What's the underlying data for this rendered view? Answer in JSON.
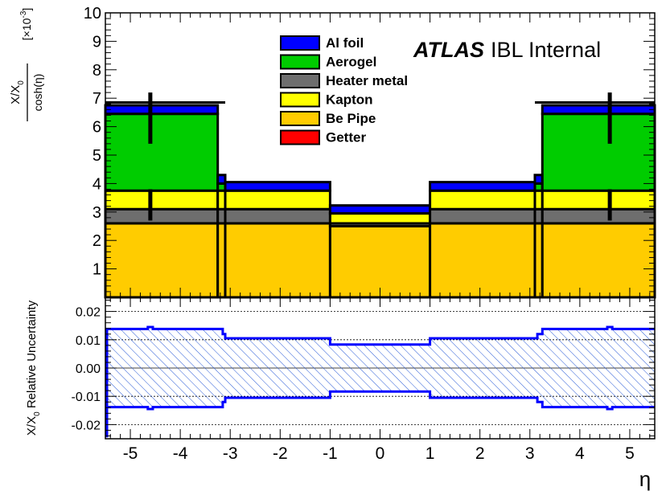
{
  "figure": {
    "watermark_bold": "ATLAS",
    "watermark_rest": "IBL Internal",
    "xlabel": "η"
  },
  "chart_data": [
    {
      "type": "bar",
      "subtype": "stacked-step-histogram",
      "ylabel_numerator": "X/X",
      "ylabel_subscript": "0",
      "ylabel_denominator": "cosh(η)",
      "ylabel_scale": "[×10",
      "ylabel_scale_exp": "-3",
      "ylabel_scale_close": "]",
      "xlim": [
        -5.5,
        5.5
      ],
      "ylim": [
        0,
        10
      ],
      "yticks": [
        "1",
        "2",
        "3",
        "4",
        "5",
        "6",
        "7",
        "8",
        "9",
        "10"
      ],
      "legend_placement": "top-center",
      "series": [
        {
          "name": "Be Pipe",
          "color": "#ffcc00"
        },
        {
          "name": "Heater metal",
          "color": "#6e6e6e"
        },
        {
          "name": "Kapton",
          "color": "#ffff00"
        },
        {
          "name": "Getter",
          "color": "#ff0000"
        },
        {
          "name": "Aerogel",
          "color": "#00cc00"
        },
        {
          "name": "Al foil",
          "color": "#0000ff"
        }
      ],
      "legend_order": [
        "Al foil",
        "Aerogel",
        "Heater metal",
        "Kapton",
        "Be Pipe",
        "Getter"
      ],
      "bins": [
        {
          "x": [
            -5.5,
            -3.25
          ],
          "layers": {
            "Be Pipe": 2.6,
            "Heater metal": 0.5,
            "Kapton": 0.65,
            "Getter": 0,
            "Aerogel": 2.7,
            "Al foil": 0.3
          }
        },
        {
          "x": [
            -3.25,
            -3.1
          ],
          "layers": {
            "Be Pipe": 2.6,
            "Heater metal": 0.5,
            "Kapton": 0.65,
            "Getter": 0,
            "Aerogel": 0.25,
            "Al foil": 0.3
          }
        },
        {
          "x": [
            -3.1,
            -1.0
          ],
          "layers": {
            "Be Pipe": 2.6,
            "Heater metal": 0.5,
            "Kapton": 0.65,
            "Getter": 0,
            "Aerogel": 0,
            "Al foil": 0.3
          }
        },
        {
          "x": [
            -1.0,
            1.0
          ],
          "layers": {
            "Be Pipe": 2.5,
            "Heater metal": 0.1,
            "Kapton": 0.35,
            "Getter": 0,
            "Aerogel": 0,
            "Al foil": 0.28
          }
        },
        {
          "x": [
            1.0,
            3.1
          ],
          "layers": {
            "Be Pipe": 2.6,
            "Heater metal": 0.5,
            "Kapton": 0.65,
            "Getter": 0,
            "Aerogel": 0,
            "Al foil": 0.3
          }
        },
        {
          "x": [
            3.1,
            3.25
          ],
          "layers": {
            "Be Pipe": 2.6,
            "Heater metal": 0.5,
            "Kapton": 0.65,
            "Getter": 0,
            "Aerogel": 0.25,
            "Al foil": 0.3
          }
        },
        {
          "x": [
            3.25,
            5.5
          ],
          "layers": {
            "Be Pipe": 2.6,
            "Heater metal": 0.5,
            "Kapton": 0.65,
            "Getter": 0,
            "Aerogel": 2.7,
            "Al foil": 0.3
          }
        }
      ],
      "internal_layer_lines": [
        {
          "x": [
            -5.5,
            -3.1
          ],
          "y": 6.85
        },
        {
          "x": [
            3.1,
            5.5
          ],
          "y": 6.85
        }
      ],
      "vertical_markers": [
        {
          "x": -4.6,
          "y": [
            5.4,
            7.2
          ]
        },
        {
          "x": 4.6,
          "y": [
            5.4,
            7.2
          ]
        },
        {
          "x": -4.6,
          "y": [
            2.7,
            3.8
          ]
        },
        {
          "x": 4.6,
          "y": [
            2.7,
            3.8
          ]
        }
      ]
    },
    {
      "type": "area",
      "subtype": "uncertainty-band",
      "ylabel": "X/X",
      "ylabel_subscript": "0",
      "ylabel_rest": " Relative Uncertainty",
      "xlabel": "η",
      "xlim": [
        -5.5,
        5.5
      ],
      "ylim": [
        -0.025,
        0.025
      ],
      "yticks": [
        "-0.02",
        "-0.01",
        "0.00",
        "0.01",
        "0.02"
      ],
      "xticks": [
        "-5",
        "-4",
        "-3",
        "-2",
        "-1",
        "0",
        "1",
        "2",
        "3",
        "4",
        "5"
      ],
      "grid": true,
      "series": [
        {
          "name": "",
          "color": "#0000ff",
          "x": [
            -5.5,
            -4.65,
            -4.55,
            -3.25,
            -3.15,
            -3.1,
            -1.0,
            1.0,
            3.1,
            3.15,
            3.25,
            4.55,
            4.65,
            5.5
          ],
          "upper": [
            0.0138,
            0.0145,
            0.0138,
            0.0138,
            0.012,
            0.0105,
            0.0083,
            0.0105,
            0.0105,
            0.012,
            0.0138,
            0.0145,
            0.0138,
            0.0138
          ],
          "lower": [
            -0.0138,
            -0.0145,
            -0.0138,
            -0.0138,
            -0.012,
            -0.0105,
            -0.0083,
            -0.0105,
            -0.0105,
            -0.012,
            -0.0138,
            -0.0145,
            -0.0138,
            -0.0138
          ]
        }
      ]
    }
  ]
}
